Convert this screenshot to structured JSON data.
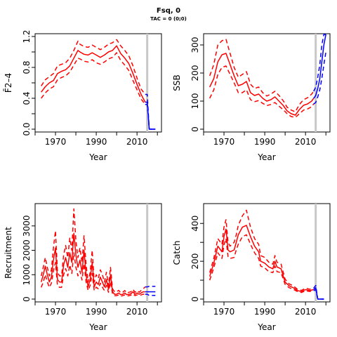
{
  "title": "Fsq, 0",
  "subtitle": "TAC = 0 (0;0)",
  "colors": {
    "history": "#ff0000",
    "forecast": "#0000ff",
    "marker": "#c8c8c8",
    "axis": "#000000"
  },
  "chart_data": [
    {
      "type": "line",
      "xlabel": "Year",
      "ylabel": "F̄2–4",
      "xlim": [
        1960,
        2022
      ],
      "ylim": [
        0,
        1.2
      ],
      "xticks": [
        1970,
        1990,
        2010
      ],
      "yticks": [
        0.0,
        0.4,
        0.8,
        1.2
      ],
      "yminor": [
        0.2,
        0.6,
        1.0
      ],
      "ytick_labels": [
        "0.0",
        "0.4",
        "0.8",
        "1.2"
      ],
      "marker_year": 2015,
      "x": [
        1963,
        1965,
        1967,
        1969,
        1971,
        1973,
        1975,
        1977,
        1979,
        1981,
        1982,
        1984,
        1986,
        1988,
        1990,
        1992,
        1994,
        1996,
        1998,
        2000,
        2002,
        2004,
        2006,
        2008,
        2010,
        2012,
        2014
      ],
      "series": [
        {
          "role": "estimate",
          "values": [
            0.48,
            0.55,
            0.6,
            0.63,
            0.72,
            0.75,
            0.77,
            0.82,
            0.92,
            1.02,
            1.0,
            0.97,
            0.96,
            0.99,
            0.96,
            0.93,
            0.96,
            1.0,
            1.02,
            1.08,
            0.98,
            0.92,
            0.85,
            0.72,
            0.58,
            0.45,
            0.35
          ]
        },
        {
          "role": "upper",
          "values": [
            0.56,
            0.64,
            0.68,
            0.72,
            0.82,
            0.84,
            0.86,
            0.92,
            1.02,
            1.14,
            1.1,
            1.07,
            1.06,
            1.09,
            1.06,
            1.03,
            1.06,
            1.1,
            1.12,
            1.16,
            1.08,
            1.02,
            0.95,
            0.82,
            0.66,
            0.52,
            0.45
          ]
        },
        {
          "role": "lower",
          "values": [
            0.4,
            0.47,
            0.52,
            0.55,
            0.64,
            0.67,
            0.69,
            0.74,
            0.83,
            0.92,
            0.91,
            0.88,
            0.87,
            0.9,
            0.86,
            0.84,
            0.87,
            0.91,
            0.93,
            0.99,
            0.89,
            0.83,
            0.76,
            0.63,
            0.51,
            0.39,
            0.32
          ]
        }
      ],
      "forecast": {
        "x": [
          2014,
          2015,
          2016,
          2017,
          2018,
          2019
        ],
        "estimate": [
          0.35,
          0.35,
          0.0,
          0.0,
          0.0,
          0.0
        ],
        "upper": [
          0.45,
          0.45,
          0.0,
          0.0,
          0.0,
          0.0
        ],
        "lower": [
          0.32,
          0.32,
          0.0,
          0.0,
          0.0,
          0.0
        ]
      }
    },
    {
      "type": "line",
      "xlabel": "Year",
      "ylabel": "SSB",
      "xlim": [
        1960,
        2022
      ],
      "ylim": [
        0,
        330
      ],
      "xticks": [
        1970,
        1990,
        2010
      ],
      "yticks": [
        0,
        100,
        200,
        300
      ],
      "ytick_labels": [
        "0",
        "100",
        "200",
        "300"
      ],
      "marker_year": 2015,
      "x": [
        1963,
        1965,
        1967,
        1969,
        1971,
        1973,
        1975,
        1977,
        1979,
        1981,
        1983,
        1985,
        1987,
        1989,
        1991,
        1993,
        1995,
        1997,
        1999,
        2001,
        2003,
        2005,
        2007,
        2009,
        2011,
        2013,
        2014
      ],
      "series": [
        {
          "role": "estimate",
          "values": [
            150,
            180,
            240,
            265,
            270,
            230,
            190,
            155,
            160,
            170,
            130,
            120,
            125,
            110,
            100,
            105,
            115,
            100,
            85,
            65,
            55,
            50,
            70,
            85,
            90,
            100,
            110
          ]
        },
        {
          "role": "upper",
          "values": [
            190,
            230,
            300,
            315,
            320,
            270,
            220,
            185,
            195,
            205,
            160,
            145,
            150,
            130,
            118,
            125,
            135,
            120,
            102,
            78,
            68,
            62,
            88,
            105,
            112,
            125,
            135
          ]
        },
        {
          "role": "lower",
          "values": [
            110,
            140,
            195,
            220,
            225,
            195,
            165,
            130,
            130,
            140,
            105,
            98,
            102,
            92,
            84,
            88,
            95,
            82,
            70,
            55,
            45,
            42,
            55,
            68,
            72,
            80,
            90
          ]
        }
      ],
      "forecast": {
        "x": [
          2014,
          2015,
          2016,
          2017,
          2018,
          2019,
          2020
        ],
        "estimate": [
          110,
          120,
          145,
          180,
          240,
          300,
          360
        ],
        "upper": [
          135,
          150,
          185,
          230,
          300,
          360,
          410
        ],
        "lower": [
          90,
          95,
          115,
          140,
          180,
          230,
          275
        ]
      }
    },
    {
      "type": "line",
      "xlabel": "Year",
      "ylabel": "Recruitment",
      "xlim": [
        1960,
        2022
      ],
      "ylim": [
        0,
        3800
      ],
      "xticks": [
        1970,
        1990,
        2010
      ],
      "yticks": [
        0,
        1000,
        2000,
        3000
      ],
      "ytick_labels": [
        "0",
        "1000",
        "2000",
        "3000"
      ],
      "marker_year": 2015,
      "x": [
        1963,
        1964,
        1965,
        1966,
        1967,
        1968,
        1969,
        1970,
        1971,
        1972,
        1973,
        1974,
        1975,
        1976,
        1977,
        1978,
        1979,
        1980,
        1981,
        1982,
        1983,
        1984,
        1985,
        1986,
        1987,
        1988,
        1989,
        1990,
        1991,
        1992,
        1993,
        1994,
        1995,
        1996,
        1997,
        1998,
        1999,
        2000,
        2001,
        2002,
        2003,
        2004,
        2005,
        2006,
        2007,
        2008,
        2009,
        2010,
        2011,
        2012,
        2013,
        2014
      ],
      "series": [
        {
          "role": "estimate",
          "values": [
            700,
            1000,
            1350,
            1000,
            700,
            900,
            1600,
            2100,
            800,
            700,
            700,
            1400,
            1700,
            1300,
            1900,
            1500,
            2700,
            1800,
            1300,
            1600,
            1100,
            2000,
            1000,
            500,
            800,
            1500,
            500,
            700,
            600,
            900,
            700,
            500,
            800,
            400,
            1000,
            300,
            200,
            200,
            250,
            180,
            200,
            250,
            180,
            200,
            220,
            300,
            200,
            250,
            200,
            250,
            300,
            300
          ]
        },
        {
          "role": "upper",
          "values": [
            950,
            1300,
            1700,
            1300,
            950,
            1200,
            2100,
            2800,
            1100,
            950,
            950,
            1800,
            2200,
            1700,
            2500,
            2000,
            3700,
            2400,
            1700,
            2100,
            1500,
            2600,
            1400,
            700,
            1100,
            2000,
            700,
            1000,
            850,
            1200,
            1000,
            700,
            1100,
            550,
            1300,
            420,
            300,
            300,
            360,
            260,
            280,
            350,
            250,
            280,
            300,
            400,
            280,
            350,
            280,
            350,
            420,
            500
          ]
        },
        {
          "role": "lower",
          "values": [
            480,
            700,
            1000,
            700,
            480,
            650,
            1150,
            1500,
            550,
            480,
            480,
            1000,
            1250,
            950,
            1400,
            1050,
            1900,
            1300,
            950,
            1150,
            780,
            1450,
            700,
            350,
            560,
            1050,
            350,
            490,
            420,
            650,
            490,
            350,
            560,
            280,
            700,
            210,
            140,
            140,
            170,
            120,
            140,
            170,
            120,
            140,
            160,
            210,
            140,
            170,
            140,
            170,
            200,
            200
          ]
        }
      ],
      "forecast": {
        "x": [
          2014,
          2015,
          2016,
          2017,
          2018,
          2019
        ],
        "estimate": [
          300,
          300,
          300,
          300,
          300,
          300
        ],
        "upper": [
          500,
          500,
          520,
          520,
          520,
          520
        ],
        "lower": [
          200,
          200,
          150,
          150,
          150,
          150
        ]
      }
    },
    {
      "type": "line",
      "xlabel": "Year",
      "ylabel": "Catch",
      "xlim": [
        1960,
        2022
      ],
      "ylim": [
        0,
        490
      ],
      "xticks": [
        1970,
        1990,
        2010
      ],
      "yticks": [
        0,
        200,
        400
      ],
      "yminor": [
        100,
        300
      ],
      "ytick_labels": [
        "0",
        "200",
        "400"
      ],
      "marker_year": 2015,
      "x": [
        1963,
        1965,
        1967,
        1969,
        1970,
        1971,
        1972,
        1973,
        1975,
        1976,
        1977,
        1979,
        1981,
        1983,
        1985,
        1987,
        1988,
        1990,
        1992,
        1994,
        1995,
        1996,
        1998,
        2000,
        2002,
        2004,
        2006,
        2008,
        2010,
        2012,
        2014
      ],
      "series": [
        {
          "role": "estimate",
          "values": [
            120,
            190,
            280,
            250,
            330,
            370,
            260,
            250,
            260,
            300,
            340,
            380,
            390,
            330,
            280,
            250,
            200,
            190,
            170,
            160,
            200,
            170,
            160,
            90,
            70,
            60,
            45,
            40,
            50,
            45,
            50
          ]
        },
        {
          "role": "upper",
          "values": [
            140,
            215,
            320,
            290,
            380,
            420,
            300,
            280,
            300,
            340,
            390,
            440,
            470,
            380,
            320,
            290,
            230,
            220,
            195,
            185,
            230,
            195,
            185,
            105,
            80,
            70,
            52,
            46,
            58,
            52,
            58
          ]
        },
        {
          "role": "lower",
          "values": [
            100,
            165,
            245,
            215,
            285,
            320,
            225,
            215,
            220,
            260,
            290,
            330,
            340,
            290,
            245,
            215,
            175,
            165,
            145,
            140,
            175,
            145,
            140,
            78,
            60,
            52,
            40,
            35,
            44,
            40,
            44
          ]
        }
      ],
      "forecast": {
        "x": [
          2014,
          2015,
          2016,
          2017,
          2018,
          2019
        ],
        "estimate": [
          50,
          60,
          0,
          0,
          0,
          0
        ],
        "upper": [
          58,
          72,
          0,
          0,
          0,
          0
        ],
        "lower": [
          44,
          50,
          0,
          0,
          0,
          0
        ]
      }
    }
  ]
}
